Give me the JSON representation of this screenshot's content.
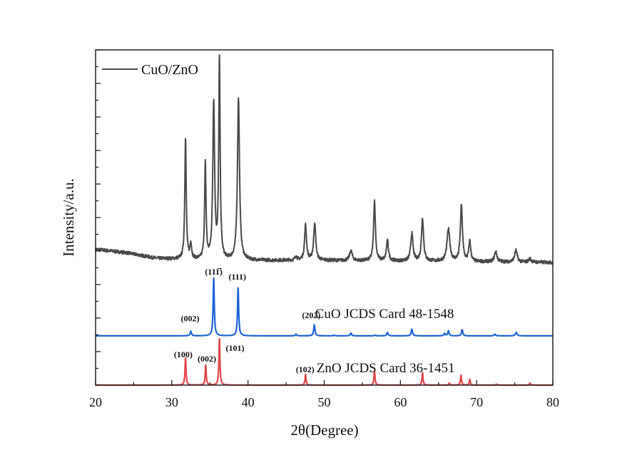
{
  "chart_data": {
    "type": "line",
    "title": "",
    "xlabel": "2θ(Degree)",
    "ylabel": "Intensity/a.u.",
    "xlim": [
      20,
      80
    ],
    "ylim": [
      0,
      10
    ],
    "xticks": [
      20,
      30,
      40,
      50,
      60,
      70,
      80
    ],
    "xtick_labels": [
      "20",
      "30",
      "40",
      "50",
      "60",
      "70",
      "80"
    ],
    "y_tick_labels_shown": false,
    "grid": false,
    "legend": {
      "placement": "top-left",
      "entries": [
        "CuO/ZnO"
      ]
    },
    "series": [
      {
        "name": "CuO/ZnO",
        "color": "#4a4a4a",
        "noise": true,
        "baseline": [
          [
            20,
            4.05
          ],
          [
            24,
            3.95
          ],
          [
            28,
            3.78
          ],
          [
            35,
            3.72
          ],
          [
            50,
            3.72
          ],
          [
            80,
            3.66
          ]
        ],
        "peaks": [
          {
            "x": 31.8,
            "h": 3.65,
            "w": 0.22
          },
          {
            "x": 32.5,
            "h": 0.45,
            "w": 0.25
          },
          {
            "x": 34.4,
            "h": 2.85,
            "w": 0.22
          },
          {
            "x": 35.5,
            "h": 4.7,
            "w": 0.28
          },
          {
            "x": 36.25,
            "h": 5.95,
            "w": 0.22
          },
          {
            "x": 38.75,
            "h": 4.85,
            "w": 0.32
          },
          {
            "x": 46.3,
            "h": 0.12,
            "w": 0.3
          },
          {
            "x": 47.55,
            "h": 1.05,
            "w": 0.3
          },
          {
            "x": 48.75,
            "h": 1.12,
            "w": 0.32
          },
          {
            "x": 53.5,
            "h": 0.3,
            "w": 0.4
          },
          {
            "x": 56.6,
            "h": 1.8,
            "w": 0.28
          },
          {
            "x": 58.3,
            "h": 0.6,
            "w": 0.32
          },
          {
            "x": 61.5,
            "h": 0.82,
            "w": 0.35
          },
          {
            "x": 62.9,
            "h": 1.28,
            "w": 0.32
          },
          {
            "x": 66.3,
            "h": 0.95,
            "w": 0.45
          },
          {
            "x": 68.0,
            "h": 1.68,
            "w": 0.32
          },
          {
            "x": 69.1,
            "h": 0.6,
            "w": 0.3
          },
          {
            "x": 72.5,
            "h": 0.3,
            "w": 0.4
          },
          {
            "x": 75.15,
            "h": 0.35,
            "w": 0.4
          },
          {
            "x": 77.0,
            "h": 0.1,
            "w": 0.4
          }
        ]
      },
      {
        "name": "CuO JCDS Card 48-1548",
        "color": "#1f63d6",
        "noise": false,
        "baseline": [
          [
            20,
            1.47
          ],
          [
            80,
            1.47
          ]
        ],
        "peaks": [
          {
            "x": 32.5,
            "h": 0.14,
            "w": 0.2
          },
          {
            "x": 35.5,
            "h": 1.72,
            "w": 0.18
          },
          {
            "x": 38.7,
            "h": 1.43,
            "w": 0.18
          },
          {
            "x": 46.3,
            "h": 0.05,
            "w": 0.2
          },
          {
            "x": 48.7,
            "h": 0.33,
            "w": 0.2
          },
          {
            "x": 51.3,
            "h": 0.02,
            "w": 0.2
          },
          {
            "x": 53.5,
            "h": 0.08,
            "w": 0.2
          },
          {
            "x": 56.7,
            "h": 0.02,
            "w": 0.2
          },
          {
            "x": 58.3,
            "h": 0.1,
            "w": 0.2
          },
          {
            "x": 61.5,
            "h": 0.2,
            "w": 0.2
          },
          {
            "x": 65.8,
            "h": 0.07,
            "w": 0.2
          },
          {
            "x": 66.3,
            "h": 0.15,
            "w": 0.2
          },
          {
            "x": 68.1,
            "h": 0.18,
            "w": 0.2
          },
          {
            "x": 72.4,
            "h": 0.05,
            "w": 0.2
          },
          {
            "x": 75.2,
            "h": 0.1,
            "w": 0.25
          }
        ]
      },
      {
        "name": "ZnO JCDS Card 36-1451",
        "color": "#e0474c",
        "noise": false,
        "baseline": [
          [
            20,
            0.0
          ],
          [
            80,
            0.0
          ]
        ],
        "peaks": [
          {
            "x": 31.8,
            "h": 0.81,
            "w": 0.16
          },
          {
            "x": 34.45,
            "h": 0.6,
            "w": 0.16
          },
          {
            "x": 36.25,
            "h": 1.4,
            "w": 0.16
          },
          {
            "x": 47.55,
            "h": 0.32,
            "w": 0.16
          },
          {
            "x": 56.6,
            "h": 0.43,
            "w": 0.16
          },
          {
            "x": 62.9,
            "h": 0.37,
            "w": 0.16
          },
          {
            "x": 66.4,
            "h": 0.06,
            "w": 0.16
          },
          {
            "x": 67.95,
            "h": 0.3,
            "w": 0.16
          },
          {
            "x": 69.1,
            "h": 0.17,
            "w": 0.16
          },
          {
            "x": 72.6,
            "h": 0.03,
            "w": 0.16
          },
          {
            "x": 77.0,
            "h": 0.06,
            "w": 0.16
          }
        ]
      }
    ],
    "series_labels": [
      {
        "text": "CuO JCDS Card 48-1548",
        "x": 48.8,
        "y": 2.0
      },
      {
        "text": "ZnO JCDS Card 36-1451",
        "x": 49.0,
        "y": 0.38
      }
    ],
    "annotations": [
      {
        "text": "(002)",
        "x": 32.4,
        "y": 1.9,
        "series": "CuO"
      },
      {
        "text": "(111̅)",
        "x": 35.5,
        "y": 3.3,
        "series": "CuO"
      },
      {
        "text": "(111)",
        "x": 38.6,
        "y": 3.15,
        "series": "CuO"
      },
      {
        "text": "(202̅)",
        "x": 48.3,
        "y": 2.0,
        "series": "CuO"
      },
      {
        "text": "(100)",
        "x": 31.5,
        "y": 0.83,
        "series": "ZnO"
      },
      {
        "text": "(002)",
        "x": 34.6,
        "y": 0.7,
        "series": "ZnO"
      },
      {
        "text": "(101)",
        "x": 38.3,
        "y": 1.02,
        "series": "ZnO"
      },
      {
        "text": "(102)",
        "x": 47.5,
        "y": 0.38,
        "series": "ZnO"
      }
    ]
  }
}
